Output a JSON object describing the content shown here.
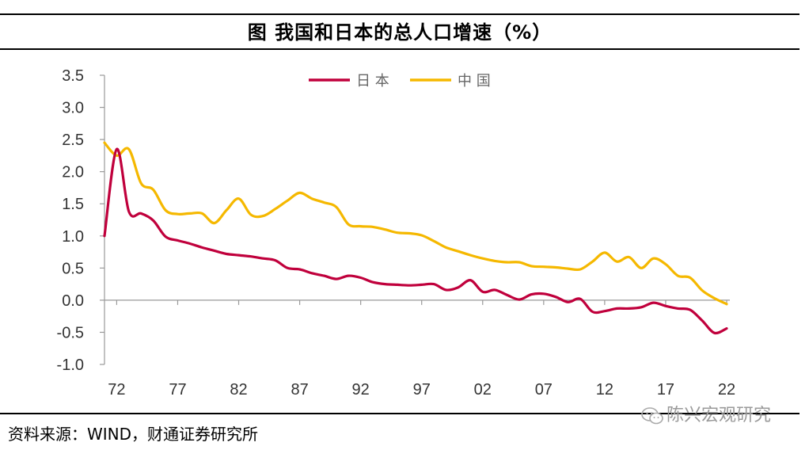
{
  "title": "图  我国和日本的总人口增速（%）",
  "source": "资料来源：WIND，财通证券研究所",
  "watermark": "陈兴宏观研究",
  "chart_data": {
    "type": "line",
    "title": "图  我国和日本的总人口增速（%）",
    "xlabel": "",
    "ylabel": "",
    "x": [
      1971,
      1972,
      1973,
      1974,
      1975,
      1976,
      1977,
      1978,
      1979,
      1980,
      1981,
      1982,
      1983,
      1984,
      1985,
      1986,
      1987,
      1988,
      1989,
      1990,
      1991,
      1992,
      1993,
      1994,
      1995,
      1996,
      1997,
      1998,
      1999,
      2000,
      2001,
      2002,
      2003,
      2004,
      2005,
      2006,
      2007,
      2008,
      2009,
      2010,
      2011,
      2012,
      2013,
      2014,
      2015,
      2016,
      2017,
      2018,
      2019,
      2020,
      2021,
      2022
    ],
    "xticks": [
      "72",
      "77",
      "82",
      "87",
      "92",
      "97",
      "02",
      "07",
      "12",
      "17",
      "22"
    ],
    "xtick_years": [
      1972,
      1977,
      1982,
      1987,
      1992,
      1997,
      2002,
      2007,
      2012,
      2017,
      2022
    ],
    "ylim": [
      -1.0,
      3.5
    ],
    "yticks": [
      "3.5",
      "3.0",
      "2.5",
      "2.0",
      "1.5",
      "1.0",
      "0.5",
      "0.0",
      "-0.5",
      "-1.0"
    ],
    "ytick_values": [
      3.5,
      3.0,
      2.5,
      2.0,
      1.5,
      1.0,
      0.5,
      0.0,
      -0.5,
      -1.0
    ],
    "grid": false,
    "legend_position": "top-center",
    "series": [
      {
        "name": "日本",
        "color": "#C0003C",
        "values": [
          1.0,
          2.35,
          1.38,
          1.35,
          1.24,
          0.99,
          0.93,
          0.88,
          0.82,
          0.77,
          0.72,
          0.7,
          0.68,
          0.65,
          0.62,
          0.5,
          0.48,
          0.42,
          0.38,
          0.33,
          0.38,
          0.35,
          0.28,
          0.25,
          0.24,
          0.23,
          0.24,
          0.25,
          0.16,
          0.2,
          0.31,
          0.13,
          0.16,
          0.08,
          0.01,
          0.09,
          0.1,
          0.05,
          -0.03,
          0.02,
          -0.18,
          -0.17,
          -0.13,
          -0.13,
          -0.11,
          -0.04,
          -0.09,
          -0.13,
          -0.15,
          -0.32,
          -0.51,
          -0.44
        ]
      },
      {
        "name": "中国",
        "color": "#F5B800",
        "values": [
          2.45,
          2.25,
          2.35,
          1.82,
          1.72,
          1.4,
          1.34,
          1.35,
          1.35,
          1.2,
          1.4,
          1.58,
          1.33,
          1.31,
          1.42,
          1.55,
          1.67,
          1.58,
          1.52,
          1.45,
          1.18,
          1.15,
          1.14,
          1.1,
          1.05,
          1.04,
          1.01,
          0.92,
          0.82,
          0.76,
          0.7,
          0.65,
          0.61,
          0.59,
          0.59,
          0.53,
          0.52,
          0.51,
          0.49,
          0.48,
          0.6,
          0.74,
          0.6,
          0.67,
          0.5,
          0.65,
          0.56,
          0.38,
          0.35,
          0.15,
          0.03,
          -0.06
        ]
      }
    ]
  }
}
